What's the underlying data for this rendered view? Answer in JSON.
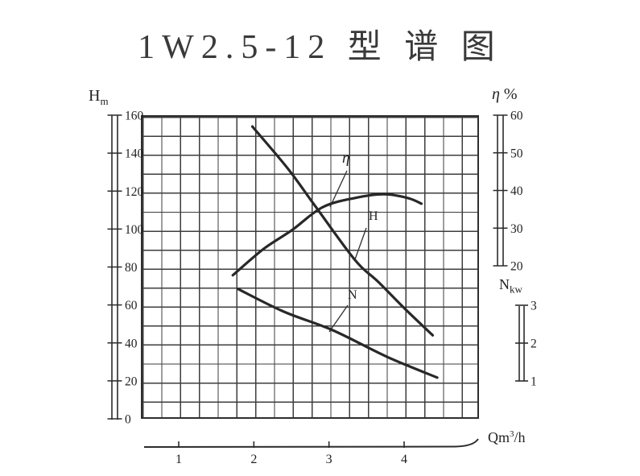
{
  "page": {
    "title": "1W2.5-12 型 谱 图",
    "background": "#ffffff",
    "ink": "#2f2f2f"
  },
  "chart_data": {
    "type": "line",
    "title": "1W2.5-12 型谱图",
    "xlabel": {
      "main": "Qm",
      "sup": "3",
      "rest": "/h"
    },
    "x_ticks": [
      1,
      2,
      3,
      4
    ],
    "xlim": [
      0.5,
      5.0
    ],
    "grid": "on",
    "legend_position": "inline-labels",
    "axes": {
      "H": {
        "label_main": "H",
        "label_sub": "m",
        "side": "left",
        "range": [
          0,
          160
        ],
        "ticks": [
          0,
          20,
          40,
          60,
          80,
          100,
          120,
          140,
          160
        ]
      },
      "eta": {
        "label_main": "η",
        "label_unit": "%",
        "side": "right",
        "range": [
          20,
          60
        ],
        "ticks": [
          20,
          30,
          40,
          50,
          60
        ]
      },
      "N": {
        "label_main": "N",
        "label_sub": "kw",
        "side": "right",
        "range": [
          1,
          3
        ],
        "ticks": [
          1,
          2,
          3
        ]
      }
    },
    "series": [
      {
        "name": "H",
        "axis": "H",
        "x": [
          1.98,
          2.45,
          2.8,
          3.34,
          3.66,
          4.01,
          4.38
        ],
        "y": [
          154,
          132,
          113,
          84,
          72,
          58,
          44
        ]
      },
      {
        "name": "η",
        "axis": "eta",
        "x": [
          1.72,
          2.13,
          2.51,
          2.91,
          3.34,
          3.73,
          4.05,
          4.23
        ],
        "y": [
          17.5,
          24.5,
          29.5,
          35.5,
          38,
          39,
          38,
          36.5
        ]
      },
      {
        "name": "N",
        "axis": "N",
        "x": [
          1.79,
          2.4,
          3.05,
          3.77,
          4.44
        ],
        "y": [
          3.43,
          2.83,
          2.34,
          1.64,
          1.09
        ]
      }
    ]
  }
}
